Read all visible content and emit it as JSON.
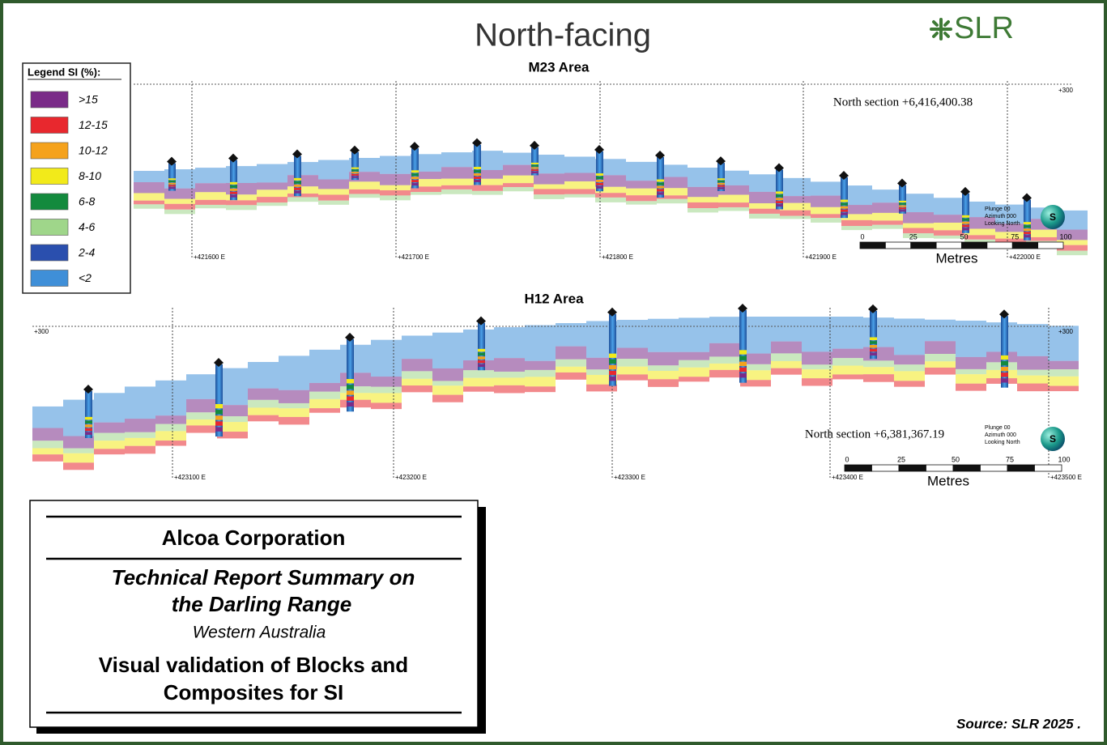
{
  "header": {
    "title": "North-facing",
    "logo": "SLR"
  },
  "legend": {
    "title": "Legend SI (%):",
    "items": [
      {
        "label": ">15",
        "color": "#7a2b88"
      },
      {
        "label": "12-15",
        "color": "#e8282e"
      },
      {
        "label": "10-12",
        "color": "#f5a21c"
      },
      {
        "label": "8-10",
        "color": "#f2ea1a"
      },
      {
        "label": "6-8",
        "color": "#138a3d"
      },
      {
        "label": "4-6",
        "color": "#9fd68a"
      },
      {
        "label": "2-4",
        "color": "#2a4fae"
      },
      {
        "label": "<2",
        "color": "#3f8fd8"
      }
    ]
  },
  "sections": [
    {
      "title": "M23 Area",
      "north_section": "North section +6,416,400.38",
      "elevation_labels": [
        "+300"
      ],
      "eastings": [
        "+421600 E",
        "+421700 E",
        "+421800 E",
        "+421900 E",
        "+422000 E"
      ],
      "orientation": [
        "Plunge 00",
        "Azimuth 000",
        "Looking North"
      ],
      "compass": "S",
      "scale": {
        "ticks": [
          "0",
          "25",
          "50",
          "75",
          "100"
        ],
        "unit": "Metres"
      }
    },
    {
      "title": "H12 Area",
      "north_section": "North section +6,381,367.19",
      "elevation_labels": [
        "+300",
        "+300"
      ],
      "eastings": [
        "+423100 E",
        "+423200 E",
        "+423300 E",
        "+423400 E",
        "+423500 E"
      ],
      "orientation": [
        "Plunge 00",
        "Azimuth 000",
        "Looking North"
      ],
      "compass": "S",
      "scale": {
        "ticks": [
          "0",
          "25",
          "50",
          "75",
          "100"
        ],
        "unit": "Metres"
      }
    }
  ],
  "title_block": {
    "company": "Alcoa Corporation",
    "report": [
      "Technical Report Summary on",
      "the Darling Range"
    ],
    "region": "Western Australia",
    "figure": [
      "Visual validation of Blocks and",
      "Composites for SI"
    ]
  },
  "source": "Source:  SLR 2025 ."
}
